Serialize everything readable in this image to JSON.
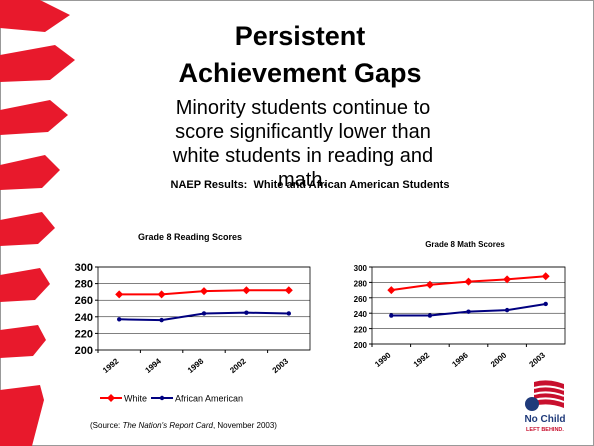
{
  "slide": {
    "title": "Persistent Achievement Gaps",
    "subtitle": "Minority students continue to score significantly lower than white students in reading and math.",
    "heading": "NAEP Results:  White and African American Students",
    "source": {
      "prefix": "(Source: ",
      "title": "The Nation's Report Card",
      "suffix": ", November 2003)"
    },
    "logo": {
      "line1": "No Child",
      "line2": "LEFT BEHIND."
    }
  },
  "chart_data": [
    {
      "type": "line",
      "title": "Grade 8 Reading Scores",
      "categories": [
        "1992",
        "1994",
        "1998",
        "2002",
        "2003"
      ],
      "ylim": [
        200,
        300
      ],
      "yticks": [
        200,
        220,
        240,
        260,
        280,
        300
      ],
      "series": [
        {
          "name": "White",
          "color": "#ff0000",
          "values": [
            267,
            267,
            271,
            272,
            272
          ]
        },
        {
          "name": "African American",
          "color": "#000080",
          "values": [
            237,
            236,
            244,
            245,
            244
          ]
        }
      ]
    },
    {
      "type": "line",
      "title": "Grade 8 Math Scores",
      "categories": [
        "1990",
        "1992",
        "1996",
        "2000",
        "2003"
      ],
      "ylim": [
        200,
        300
      ],
      "yticks": [
        200,
        220,
        240,
        260,
        280,
        300
      ],
      "series": [
        {
          "color": "#ff0000",
          "values": [
            270,
            277,
            281,
            284,
            288
          ]
        },
        {
          "color": "#000080",
          "values": [
            237,
            237,
            242,
            244,
            252
          ]
        }
      ]
    }
  ]
}
